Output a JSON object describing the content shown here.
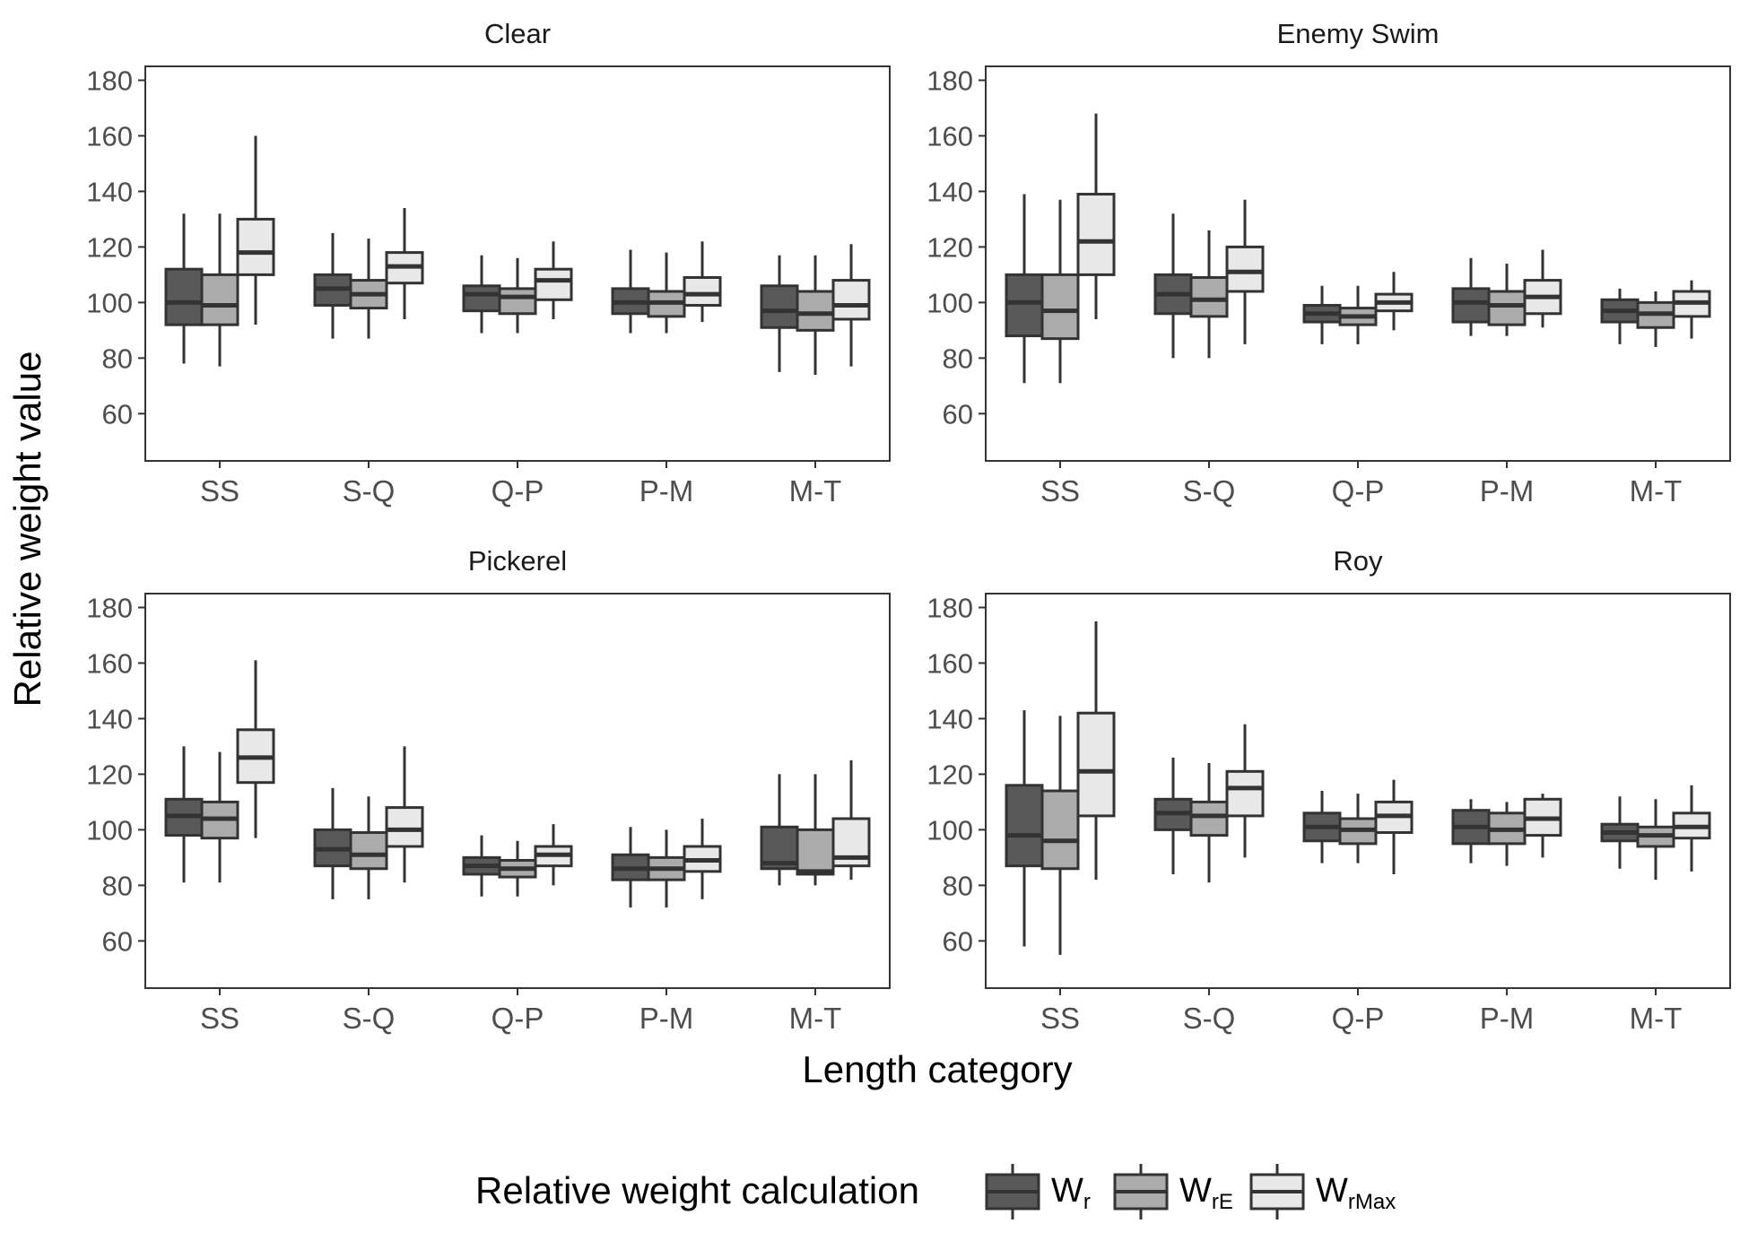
{
  "chart_data": {
    "type": "boxplot",
    "xlabel": "Length category",
    "ylabel": "Relative weight value",
    "ylim": [
      43,
      185
    ],
    "yticks": [
      60,
      80,
      100,
      120,
      140,
      160,
      180
    ],
    "categories": [
      "SS",
      "S-Q",
      "Q-P",
      "P-M",
      "M-T"
    ],
    "grid": false,
    "legend": {
      "title": "Relative weight calculation",
      "position": "bottom",
      "entries": [
        {
          "base": "W",
          "sub": "r",
          "fill": "#595959"
        },
        {
          "base": "W",
          "sub": "rE",
          "fill": "#ababab"
        },
        {
          "base": "W",
          "sub": "rMax",
          "fill": "#e8e8e8"
        }
      ]
    },
    "panels": [
      {
        "title": "Clear",
        "series": [
          {
            "name": "Wr",
            "boxes": [
              {
                "min": 78,
                "q1": 92,
                "median": 100,
                "q3": 112,
                "max": 132
              },
              {
                "min": 87,
                "q1": 99,
                "median": 105,
                "q3": 110,
                "max": 125
              },
              {
                "min": 89,
                "q1": 97,
                "median": 103,
                "q3": 106,
                "max": 117
              },
              {
                "min": 89,
                "q1": 96,
                "median": 100,
                "q3": 105,
                "max": 119
              },
              {
                "min": 75,
                "q1": 91,
                "median": 97,
                "q3": 106,
                "max": 117
              }
            ]
          },
          {
            "name": "WrE",
            "boxes": [
              {
                "min": 77,
                "q1": 92,
                "median": 99,
                "q3": 110,
                "max": 132
              },
              {
                "min": 87,
                "q1": 98,
                "median": 103,
                "q3": 108,
                "max": 123
              },
              {
                "min": 89,
                "q1": 96,
                "median": 102,
                "q3": 105,
                "max": 116
              },
              {
                "min": 89,
                "q1": 95,
                "median": 100,
                "q3": 104,
                "max": 118
              },
              {
                "min": 74,
                "q1": 90,
                "median": 96,
                "q3": 104,
                "max": 117
              }
            ]
          },
          {
            "name": "WrMax",
            "boxes": [
              {
                "min": 92,
                "q1": 110,
                "median": 118,
                "q3": 130,
                "max": 160
              },
              {
                "min": 94,
                "q1": 107,
                "median": 113,
                "q3": 118,
                "max": 134
              },
              {
                "min": 94,
                "q1": 101,
                "median": 108,
                "q3": 112,
                "max": 122
              },
              {
                "min": 93,
                "q1": 99,
                "median": 103,
                "q3": 109,
                "max": 122
              },
              {
                "min": 77,
                "q1": 94,
                "median": 99,
                "q3": 108,
                "max": 121
              }
            ]
          }
        ]
      },
      {
        "title": "Enemy Swim",
        "series": [
          {
            "name": "Wr",
            "boxes": [
              {
                "min": 71,
                "q1": 88,
                "median": 100,
                "q3": 110,
                "max": 139
              },
              {
                "min": 80,
                "q1": 96,
                "median": 103,
                "q3": 110,
                "max": 132
              },
              {
                "min": 85,
                "q1": 93,
                "median": 96,
                "q3": 99,
                "max": 106
              },
              {
                "min": 88,
                "q1": 93,
                "median": 100,
                "q3": 105,
                "max": 116
              },
              {
                "min": 85,
                "q1": 93,
                "median": 97,
                "q3": 101,
                "max": 105
              }
            ]
          },
          {
            "name": "WrE",
            "boxes": [
              {
                "min": 71,
                "q1": 87,
                "median": 97,
                "q3": 110,
                "max": 137
              },
              {
                "min": 80,
                "q1": 95,
                "median": 101,
                "q3": 109,
                "max": 126
              },
              {
                "min": 85,
                "q1": 92,
                "median": 95,
                "q3": 98,
                "max": 106
              },
              {
                "min": 88,
                "q1": 92,
                "median": 99,
                "q3": 104,
                "max": 114
              },
              {
                "min": 84,
                "q1": 91,
                "median": 96,
                "q3": 100,
                "max": 104
              }
            ]
          },
          {
            "name": "WrMax",
            "boxes": [
              {
                "min": 94,
                "q1": 110,
                "median": 122,
                "q3": 139,
                "max": 168
              },
              {
                "min": 85,
                "q1": 104,
                "median": 111,
                "q3": 120,
                "max": 137
              },
              {
                "min": 90,
                "q1": 97,
                "median": 100,
                "q3": 103,
                "max": 111
              },
              {
                "min": 91,
                "q1": 96,
                "median": 102,
                "q3": 108,
                "max": 119
              },
              {
                "min": 87,
                "q1": 95,
                "median": 100,
                "q3": 104,
                "max": 108
              }
            ]
          }
        ]
      },
      {
        "title": "Pickerel",
        "series": [
          {
            "name": "Wr",
            "boxes": [
              {
                "min": 81,
                "q1": 98,
                "median": 105,
                "q3": 111,
                "max": 130
              },
              {
                "min": 75,
                "q1": 87,
                "median": 93,
                "q3": 100,
                "max": 115
              },
              {
                "min": 76,
                "q1": 84,
                "median": 87,
                "q3": 90,
                "max": 98
              },
              {
                "min": 72,
                "q1": 82,
                "median": 86,
                "q3": 91,
                "max": 101
              },
              {
                "min": 80,
                "q1": 86,
                "median": 88,
                "q3": 101,
                "max": 120
              }
            ]
          },
          {
            "name": "WrE",
            "boxes": [
              {
                "min": 81,
                "q1": 97,
                "median": 104,
                "q3": 110,
                "max": 128
              },
              {
                "min": 75,
                "q1": 86,
                "median": 91,
                "q3": 99,
                "max": 112
              },
              {
                "min": 76,
                "q1": 83,
                "median": 86,
                "q3": 89,
                "max": 96
              },
              {
                "min": 72,
                "q1": 82,
                "median": 86,
                "q3": 90,
                "max": 100
              },
              {
                "min": 80,
                "q1": 84,
                "median": 85,
                "q3": 100,
                "max": 120
              }
            ]
          },
          {
            "name": "WrMax",
            "boxes": [
              {
                "min": 97,
                "q1": 117,
                "median": 126,
                "q3": 136,
                "max": 161
              },
              {
                "min": 81,
                "q1": 94,
                "median": 100,
                "q3": 108,
                "max": 130
              },
              {
                "min": 80,
                "q1": 87,
                "median": 91,
                "q3": 94,
                "max": 102
              },
              {
                "min": 75,
                "q1": 85,
                "median": 89,
                "q3": 94,
                "max": 104
              },
              {
                "min": 82,
                "q1": 87,
                "median": 90,
                "q3": 104,
                "max": 125
              }
            ]
          }
        ]
      },
      {
        "title": "Roy",
        "series": [
          {
            "name": "Wr",
            "boxes": [
              {
                "min": 58,
                "q1": 87,
                "median": 98,
                "q3": 116,
                "max": 143
              },
              {
                "min": 84,
                "q1": 100,
                "median": 106,
                "q3": 111,
                "max": 126
              },
              {
                "min": 88,
                "q1": 96,
                "median": 101,
                "q3": 106,
                "max": 114
              },
              {
                "min": 88,
                "q1": 95,
                "median": 101,
                "q3": 107,
                "max": 111
              },
              {
                "min": 86,
                "q1": 96,
                "median": 99,
                "q3": 102,
                "max": 112
              }
            ]
          },
          {
            "name": "WrE",
            "boxes": [
              {
                "min": 55,
                "q1": 86,
                "median": 96,
                "q3": 114,
                "max": 141
              },
              {
                "min": 81,
                "q1": 98,
                "median": 105,
                "q3": 110,
                "max": 124
              },
              {
                "min": 88,
                "q1": 95,
                "median": 100,
                "q3": 104,
                "max": 113
              },
              {
                "min": 87,
                "q1": 95,
                "median": 100,
                "q3": 106,
                "max": 110
              },
              {
                "min": 82,
                "q1": 94,
                "median": 98,
                "q3": 101,
                "max": 111
              }
            ]
          },
          {
            "name": "WrMax",
            "boxes": [
              {
                "min": 82,
                "q1": 105,
                "median": 121,
                "q3": 142,
                "max": 175
              },
              {
                "min": 90,
                "q1": 105,
                "median": 115,
                "q3": 121,
                "max": 138
              },
              {
                "min": 84,
                "q1": 99,
                "median": 105,
                "q3": 110,
                "max": 118
              },
              {
                "min": 90,
                "q1": 98,
                "median": 104,
                "q3": 111,
                "max": 113
              },
              {
                "min": 85,
                "q1": 97,
                "median": 101,
                "q3": 106,
                "max": 116
              }
            ]
          }
        ]
      }
    ]
  }
}
